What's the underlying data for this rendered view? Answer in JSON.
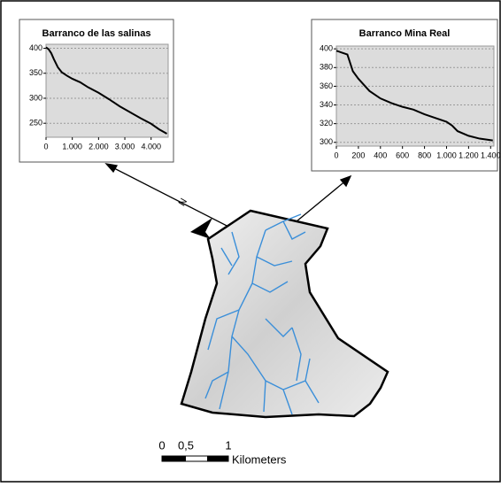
{
  "chart_data": [
    {
      "type": "line",
      "title": "Barranco de las salinas",
      "x": [
        0,
        100,
        200,
        300,
        450,
        600,
        800,
        1000,
        1300,
        1600,
        2000,
        2400,
        2800,
        3200,
        3600,
        4000,
        4300,
        4600
      ],
      "series": [
        {
          "color": "#000000",
          "values": [
            402,
            398,
            390,
            378,
            362,
            352,
            345,
            339,
            332,
            322,
            311,
            298,
            284,
            272,
            260,
            249,
            238,
            229
          ]
        }
      ],
      "xlim": [
        0,
        4650
      ],
      "ylim": [
        222,
        408
      ],
      "xticks": [
        0,
        {
          "value": 1000,
          "label": "1.000"
        },
        {
          "value": 2000,
          "label": "2.000"
        },
        {
          "value": 3000,
          "label": "3.000"
        },
        {
          "value": 4000,
          "label": "4.000"
        }
      ],
      "yticks": [
        250,
        300,
        350,
        400
      ],
      "grid": true
    },
    {
      "type": "line",
      "title": "Barranco Mina Real",
      "x": [
        0,
        50,
        100,
        150,
        200,
        300,
        400,
        500,
        600,
        700,
        800,
        900,
        1000,
        1050,
        1100,
        1200,
        1300,
        1420
      ],
      "series": [
        {
          "color": "#000000",
          "values": [
            398,
            396,
            394,
            376,
            368,
            355,
            347,
            342,
            338,
            335,
            330,
            326,
            322,
            318,
            312,
            307,
            304,
            302
          ]
        }
      ],
      "xlim": [
        0,
        1430
      ],
      "ylim": [
        296,
        403
      ],
      "xticks": [
        0,
        200,
        400,
        600,
        800,
        {
          "value": 1000,
          "label": "1.000"
        },
        {
          "value": 1200,
          "label": "1.200"
        },
        {
          "value": 1400,
          "label": "1.400"
        }
      ],
      "yticks": [
        300,
        320,
        340,
        360,
        380,
        400
      ],
      "grid": true
    }
  ],
  "map": {
    "north_label": "N",
    "scale_labels": [
      "0",
      "0,5",
      "1"
    ],
    "scale_unit": "Kilometers"
  }
}
